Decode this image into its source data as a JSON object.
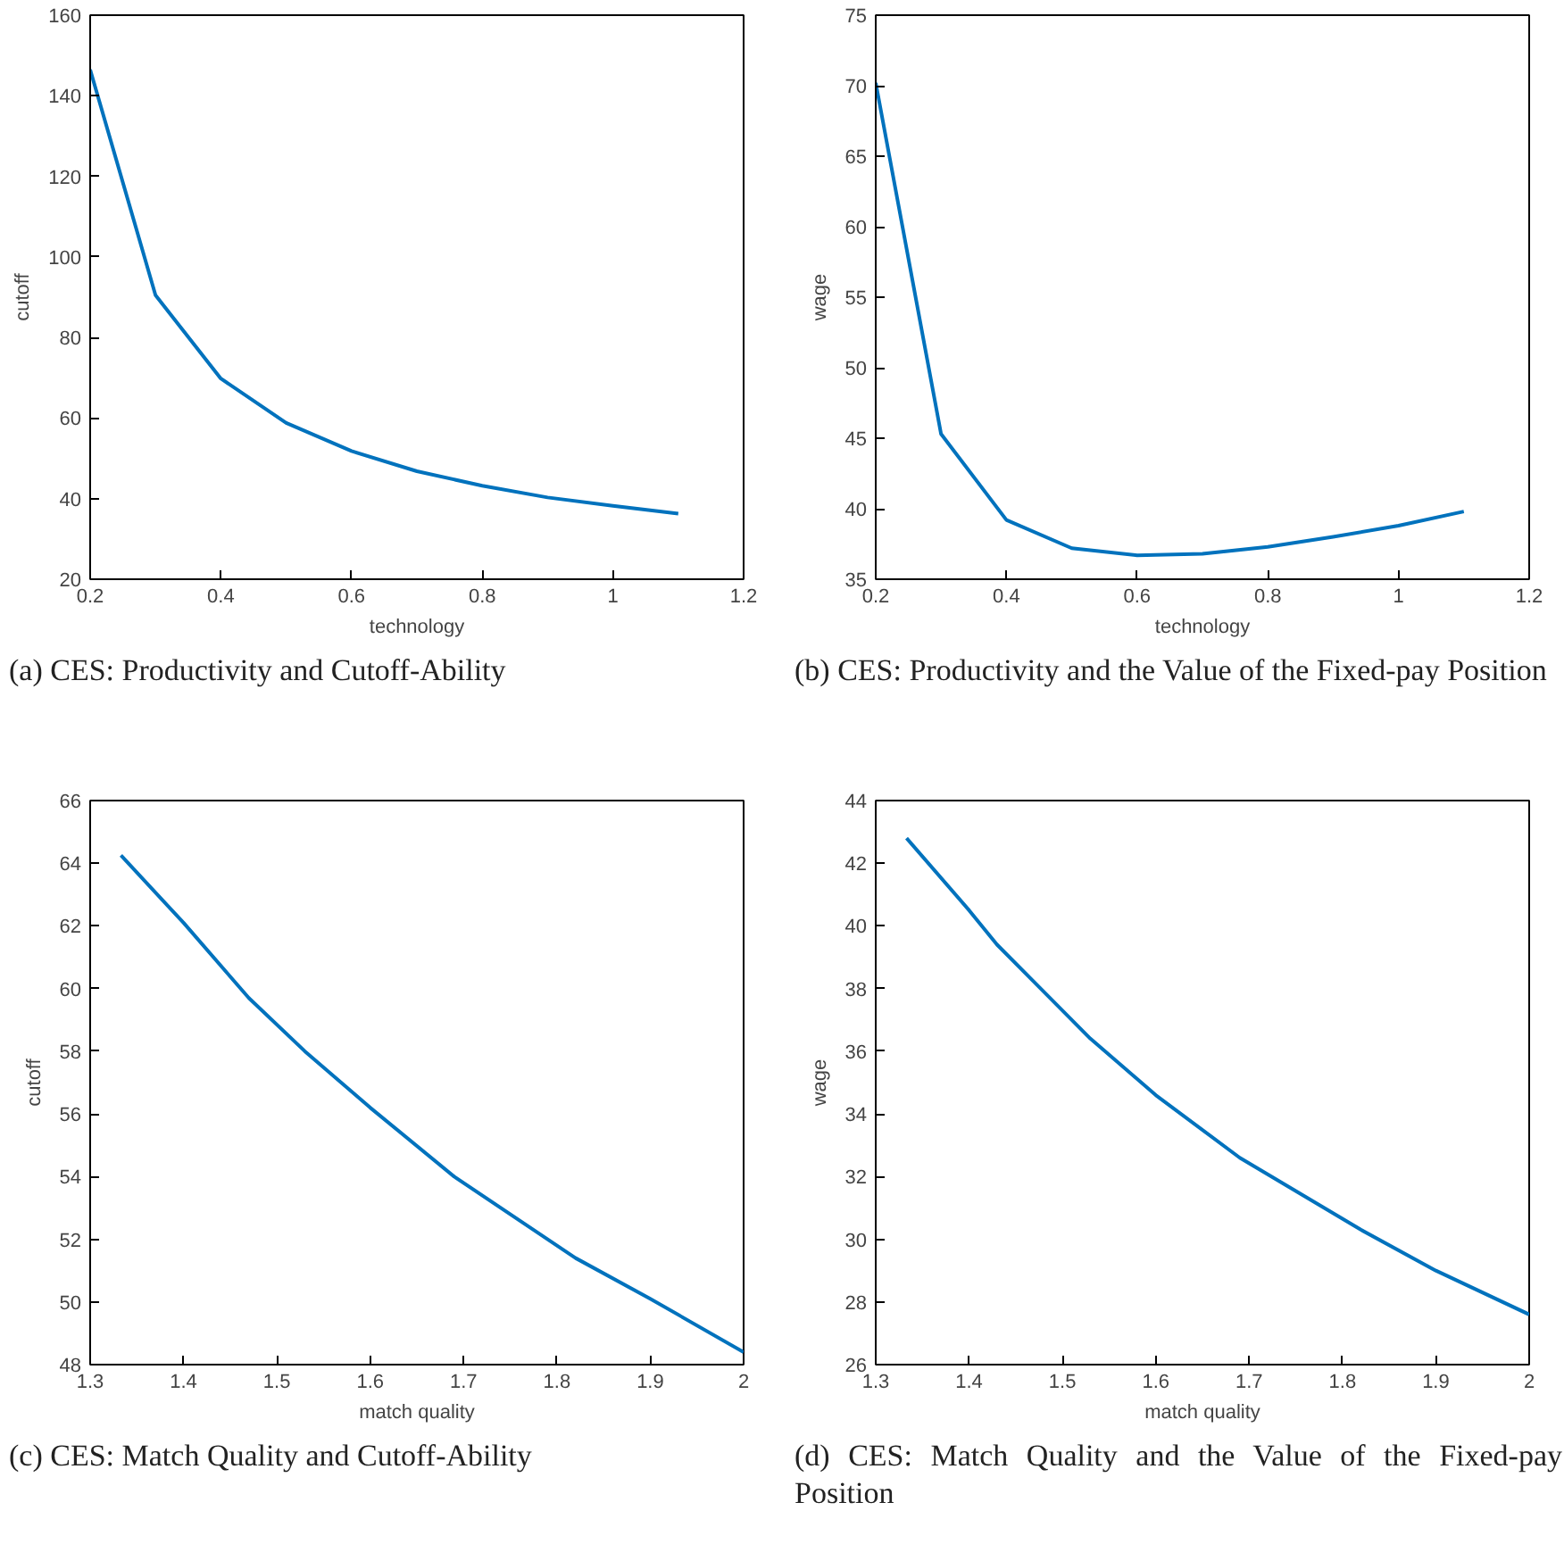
{
  "chart_data": [
    {
      "type": "line",
      "xlabel": "technology",
      "ylabel": "cutoff",
      "x": [
        0.2,
        0.3,
        0.4,
        0.5,
        0.6,
        0.7,
        0.8,
        0.9,
        1.0,
        1.1
      ],
      "series": [
        {
          "color": "#0072bd",
          "values": [
            146.5,
            90.5,
            69.8,
            58.8,
            51.8,
            46.8,
            43.2,
            40.3,
            38.2,
            36.3
          ]
        }
      ],
      "xlim": [
        0.2,
        1.2
      ],
      "xticks": [
        0.2,
        0.4,
        0.6,
        0.8,
        1,
        1.2
      ],
      "ylim": [
        20,
        160
      ],
      "yticks": [
        20,
        40,
        60,
        80,
        100,
        120,
        140,
        160
      ],
      "grid": false,
      "annotations": [
        "(a) CES: Productivity and Cutoff-Ability"
      ]
    },
    {
      "type": "line",
      "xlabel": "technology",
      "ylabel": "wage",
      "x": [
        0.2,
        0.3,
        0.4,
        0.5,
        0.6,
        0.7,
        0.8,
        0.9,
        1.0,
        1.1
      ],
      "series": [
        {
          "color": "#0072bd",
          "values": [
            70.2,
            45.3,
            39.2,
            37.2,
            36.7,
            36.8,
            37.3,
            38.0,
            38.8,
            39.8
          ]
        }
      ],
      "xlim": [
        0.2,
        1.2
      ],
      "xticks": [
        0.2,
        0.4,
        0.6,
        0.8,
        1,
        1.2
      ],
      "ylim": [
        35,
        75
      ],
      "yticks": [
        35,
        40,
        45,
        50,
        55,
        60,
        65,
        70,
        75
      ],
      "grid": false,
      "annotations": [
        "(b) CES: Productivity and the Value of the Fixed-pay Position"
      ]
    },
    {
      "type": "line",
      "xlabel": "match quality",
      "ylabel": "cutoff",
      "x": [
        1.333,
        1.4,
        1.47,
        1.53,
        1.6,
        1.69,
        1.82,
        1.9,
        2.0
      ],
      "series": [
        {
          "color": "#0072bd",
          "values": [
            64.25,
            62.1,
            59.7,
            58.0,
            56.2,
            54.0,
            51.4,
            50.1,
            48.4
          ]
        }
      ],
      "xlim": [
        1.3,
        2
      ],
      "xticks": [
        1.3,
        1.4,
        1.5,
        1.6,
        1.7,
        1.8,
        1.9,
        2
      ],
      "ylim": [
        48,
        66
      ],
      "yticks": [
        48,
        50,
        52,
        54,
        56,
        58,
        60,
        62,
        64,
        66
      ],
      "grid": false,
      "annotations": [
        "(c) CES: Match Quality and Cutoff-Ability"
      ]
    },
    {
      "type": "line",
      "xlabel": "match quality",
      "ylabel": "wage",
      "x": [
        1.333,
        1.4,
        1.43,
        1.47,
        1.53,
        1.6,
        1.69,
        1.82,
        1.9,
        2.0
      ],
      "series": [
        {
          "color": "#0072bd",
          "values": [
            42.8,
            40.5,
            39.4,
            38.2,
            36.4,
            34.6,
            32.6,
            30.3,
            29.0,
            27.6
          ]
        }
      ],
      "xlim": [
        1.3,
        2
      ],
      "xticks": [
        1.3,
        1.4,
        1.5,
        1.6,
        1.7,
        1.8,
        1.9,
        2
      ],
      "ylim": [
        26,
        44
      ],
      "yticks": [
        26,
        28,
        30,
        32,
        34,
        36,
        38,
        40,
        42,
        44
      ],
      "grid": false,
      "annotations": [
        "(d) CES: Match Quality and the Value of the Fixed-pay Position"
      ]
    }
  ]
}
